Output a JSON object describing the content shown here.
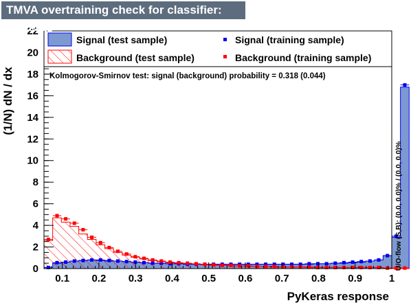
{
  "title": "TMVA overtraining check for classifier: PyKeras",
  "chart_data": {
    "type": "histogram",
    "xlabel": "PyKeras response",
    "ylabel": "(1/N) dN / dx",
    "xlim": [
      0.05,
      1.0
    ],
    "ylim": [
      0,
      22
    ],
    "xticks": [
      "0.1",
      "0.2",
      "0.3",
      "0.4",
      "0.5",
      "0.6",
      "0.7",
      "0.8",
      "0.9",
      "1"
    ],
    "yticks": [
      "0",
      "2",
      "4",
      "6",
      "8",
      "10",
      "12",
      "14",
      "16",
      "18",
      "20",
      "22"
    ],
    "bin_edges_start": 0.05,
    "bin_width": 0.02375,
    "annotation": "Kolmogorov-Smirnov test: signal (background) probability = 0.318 (0.044)",
    "side_label": "U/O-flow (S,B): (0.0, 0.0)% / (0.0, 0.0)%",
    "colors": {
      "signal_fill": "#7d99d1",
      "signal_line": "#0000ee",
      "background": "#ff0000"
    },
    "legend": {
      "signal_test": "Signal (test sample)",
      "signal_train": "Signal (training sample)",
      "background_test": "Background (test sample)",
      "background_train": "Background (training sample)"
    },
    "series": [
      {
        "name": "Signal (test sample)",
        "style": "filled",
        "values": [
          0.1,
          0.5,
          0.6,
          0.7,
          0.75,
          0.8,
          0.75,
          0.7,
          0.7,
          0.65,
          0.6,
          0.55,
          0.5,
          0.5,
          0.45,
          0.45,
          0.4,
          0.4,
          0.4,
          0.4,
          0.4,
          0.4,
          0.4,
          0.4,
          0.4,
          0.4,
          0.4,
          0.4,
          0.4,
          0.4,
          0.4,
          0.45,
          0.45,
          0.5,
          0.5,
          0.55,
          0.6,
          0.7,
          0.8,
          1.2,
          2.9,
          16.8
        ]
      },
      {
        "name": "Signal (training sample)",
        "style": "points",
        "values": [
          0.1,
          0.55,
          0.6,
          0.7,
          0.75,
          0.8,
          0.8,
          0.75,
          0.7,
          0.65,
          0.6,
          0.55,
          0.5,
          0.5,
          0.45,
          0.45,
          0.4,
          0.4,
          0.4,
          0.4,
          0.4,
          0.4,
          0.4,
          0.4,
          0.4,
          0.4,
          0.4,
          0.4,
          0.4,
          0.4,
          0.45,
          0.45,
          0.45,
          0.5,
          0.55,
          0.6,
          0.65,
          0.7,
          0.8,
          1.2,
          3.0,
          17.0
        ]
      },
      {
        "name": "Background (test sample)",
        "style": "hatched",
        "values": [
          2.6,
          4.7,
          4.3,
          3.9,
          3.2,
          2.7,
          2.2,
          1.85,
          1.5,
          1.25,
          1.05,
          0.9,
          0.75,
          0.65,
          0.55,
          0.5,
          0.45,
          0.4,
          0.35,
          0.3,
          0.3,
          0.25,
          0.25,
          0.2,
          0.2,
          0.2,
          0.15,
          0.15,
          0.15,
          0.15,
          0.1,
          0.1,
          0.1,
          0.1,
          0.1,
          0.1,
          0.1,
          0.1,
          0.1,
          0.05,
          0.05,
          0.05
        ]
      },
      {
        "name": "Background (training sample)",
        "style": "points",
        "values": [
          2.7,
          4.9,
          4.6,
          4.2,
          3.6,
          2.9,
          2.4,
          1.95,
          1.6,
          1.35,
          1.1,
          0.95,
          0.8,
          0.7,
          0.6,
          0.55,
          0.5,
          0.45,
          0.4,
          0.35,
          0.3,
          0.3,
          0.25,
          0.25,
          0.2,
          0.2,
          0.2,
          0.15,
          0.15,
          0.15,
          0.15,
          0.1,
          0.1,
          0.1,
          0.1,
          0.1,
          0.1,
          0.1,
          0.1,
          0.05,
          0.05,
          0.05
        ]
      }
    ]
  }
}
